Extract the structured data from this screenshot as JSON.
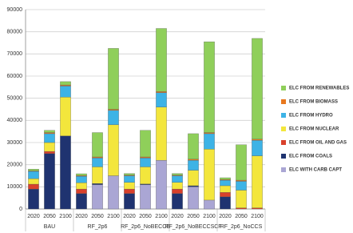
{
  "chart_data": {
    "type": "stacked-bar",
    "categories": [
      "2020",
      "2050",
      "2100",
      "2020",
      "2050",
      "2100",
      "2020",
      "2050",
      "2100",
      "2020",
      "2050",
      "2100",
      "2020",
      "2050",
      "2100"
    ],
    "groups": [
      "BAU",
      "RF_2p6",
      "RF_2p6_NoBECCS",
      "RF_2p6_NoBECCSCF",
      "RF_2p6_NoCCS"
    ],
    "series": [
      {
        "name": "ELC WITH CARB CAPT",
        "color": "#aaa6d4",
        "values": [
          0,
          0,
          0,
          0,
          11000,
          15000,
          0,
          11000,
          22000,
          0,
          10000,
          4000,
          0,
          0,
          0
        ]
      },
      {
        "name": "ELC FROM COALS",
        "color": "#1f3370",
        "values": [
          9000,
          25000,
          33000,
          7000,
          500,
          0,
          7000,
          300,
          0,
          7000,
          500,
          0,
          5500,
          0,
          0
        ]
      },
      {
        "name": "ELC FROM OIL AND GAS",
        "color": "#d9402b",
        "values": [
          2200,
          1000,
          0,
          2000,
          0,
          0,
          2000,
          0,
          0,
          2000,
          0,
          0,
          2000,
          500,
          500
        ]
      },
      {
        "name": "ELC FROM NUCLEAR",
        "color": "#f3e63c",
        "values": [
          2500,
          4000,
          17500,
          2800,
          7500,
          23000,
          3000,
          7700,
          24000,
          3000,
          7000,
          23000,
          3000,
          8000,
          23500
        ]
      },
      {
        "name": "ELC FROM HYDRO",
        "color": "#3db3e6",
        "values": [
          3300,
          4000,
          5000,
          3000,
          4000,
          6500,
          3000,
          4000,
          6500,
          3000,
          4500,
          7000,
          2500,
          4000,
          7000
        ]
      },
      {
        "name": "ELC FROM BIOMASS",
        "color": "#e8781e",
        "values": [
          200,
          500,
          500,
          300,
          500,
          500,
          300,
          500,
          500,
          300,
          500,
          500,
          300,
          500,
          500
        ]
      },
      {
        "name": "ELC FROM RENEWABLES",
        "color": "#8fcf5a",
        "values": [
          800,
          1000,
          1500,
          800,
          11000,
          27500,
          700,
          12000,
          28500,
          700,
          11500,
          41000,
          800,
          16000,
          45500
        ]
      }
    ],
    "ylim": [
      0,
      90000
    ],
    "yticks": [
      0,
      10000,
      20000,
      30000,
      40000,
      50000,
      60000,
      70000,
      80000,
      90000
    ],
    "grid": true
  }
}
